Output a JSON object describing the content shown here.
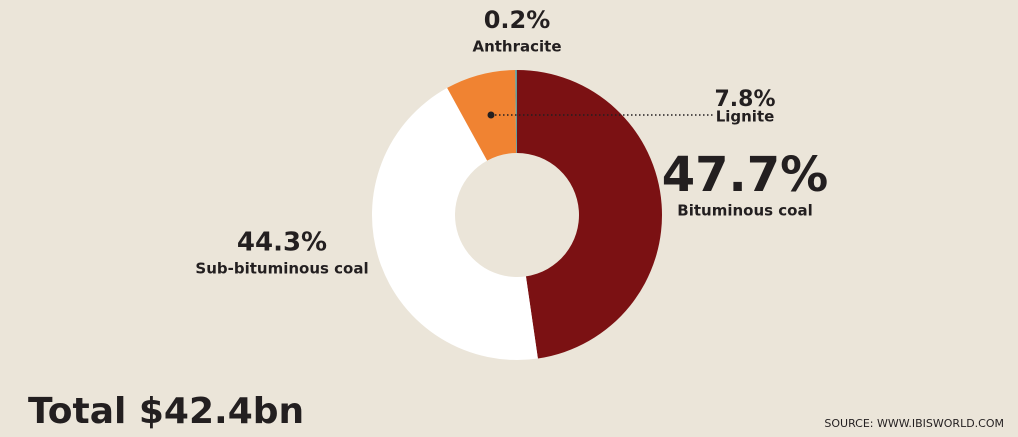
{
  "chart_data": {
    "type": "donut",
    "categories": [
      "Bituminous coal",
      "Sub-bituminous coal",
      "Lignite",
      "Anthracite"
    ],
    "values": [
      47.7,
      44.3,
      7.8,
      0.2
    ],
    "value_labels": [
      "47.7%",
      "44.3%",
      "7.8%",
      "0.2%"
    ],
    "colors": [
      "#7b1113",
      "#ffffff",
      "#f08332",
      "#5f9ea0"
    ],
    "total": "Total $42.4bn",
    "source": "SOURCE: WWW.IBISWORLD.COM"
  }
}
